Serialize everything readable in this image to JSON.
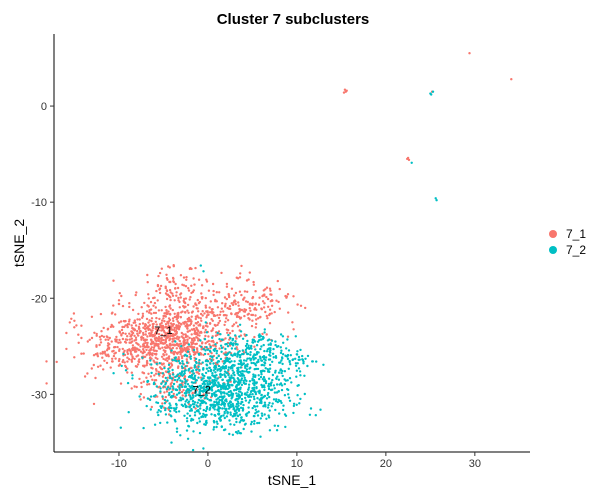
{
  "chart_data": {
    "type": "scatter",
    "title": "Cluster 7  subclusters",
    "xlabel": "tSNE_1",
    "ylabel": "tSNE_2",
    "xlim": [
      -17.3,
      36.2
    ],
    "ylim": [
      -36.0,
      7.5
    ],
    "xticks": [
      -10,
      0,
      10,
      20,
      30
    ],
    "yticks": [
      0,
      -10,
      -20,
      -30
    ],
    "grid": false,
    "legend_position": "right",
    "series": [
      {
        "name": "7_1",
        "color": "#F8766D",
        "label_at": [
          -5.0,
          -23.7
        ],
        "clusters": [
          {
            "center": [
              -3.6,
              -24.0
            ],
            "spread": [
              3.4,
              2.0
            ],
            "count": 800
          },
          {
            "center": [
              -8.5,
              -25.0
            ],
            "spread": [
              3.3,
              1.4
            ],
            "count": 260
          },
          {
            "center": [
              4.5,
              -20.6
            ],
            "spread": [
              2.2,
              1.4
            ],
            "count": 170
          },
          {
            "center": [
              -4.0,
              -29.0
            ],
            "spread": [
              2.2,
              1.2
            ],
            "count": 110
          },
          {
            "center": [
              -3.5,
              -19.0
            ],
            "spread": [
              1.8,
              1.1
            ],
            "count": 80
          },
          {
            "center": [
              -15.4,
              -22.6
            ],
            "spread": [
              0.5,
              0.4
            ],
            "count": 5
          }
        ],
        "points": [
          [
            15.4,
            1.7
          ],
          [
            15.5,
            1.5
          ],
          [
            15.3,
            1.4
          ],
          [
            15.6,
            1.6
          ],
          [
            22.5,
            -5.4
          ],
          [
            22.6,
            -5.6
          ],
          [
            22.4,
            -5.5
          ],
          [
            29.4,
            5.5
          ],
          [
            34.1,
            2.8
          ],
          [
            25.2,
            1.5
          ],
          [
            -12.5,
            -23.9
          ],
          [
            -13.5,
            -24.5
          ],
          [
            9.0,
            -24.0
          ],
          [
            9.5,
            -22.5
          ]
        ]
      },
      {
        "name": "7_2",
        "color": "#00BFC4",
        "label_at": [
          -0.7,
          -29.9
        ],
        "clusters": [
          {
            "center": [
              1.5,
              -29.5
            ],
            "spread": [
              3.8,
              2.1
            ],
            "count": 1150
          },
          {
            "center": [
              5.0,
              -25.6
            ],
            "spread": [
              2.4,
              1.0
            ],
            "count": 160
          },
          {
            "center": [
              10.0,
              -26.4
            ],
            "spread": [
              0.9,
              0.5
            ],
            "count": 25
          }
        ],
        "points": [
          [
            25.0,
            1.3
          ],
          [
            25.3,
            1.5
          ],
          [
            25.1,
            1.2
          ],
          [
            22.9,
            -5.9
          ],
          [
            25.6,
            -9.6
          ],
          [
            25.7,
            -9.8
          ],
          [
            -0.8,
            -16.6
          ],
          [
            -0.5,
            -17.2
          ],
          [
            -9.5,
            -25.8
          ]
        ]
      }
    ]
  },
  "legend_items": [
    {
      "label": "7_1",
      "color": "#F8766D"
    },
    {
      "label": "7_2",
      "color": "#00BFC4"
    }
  ]
}
